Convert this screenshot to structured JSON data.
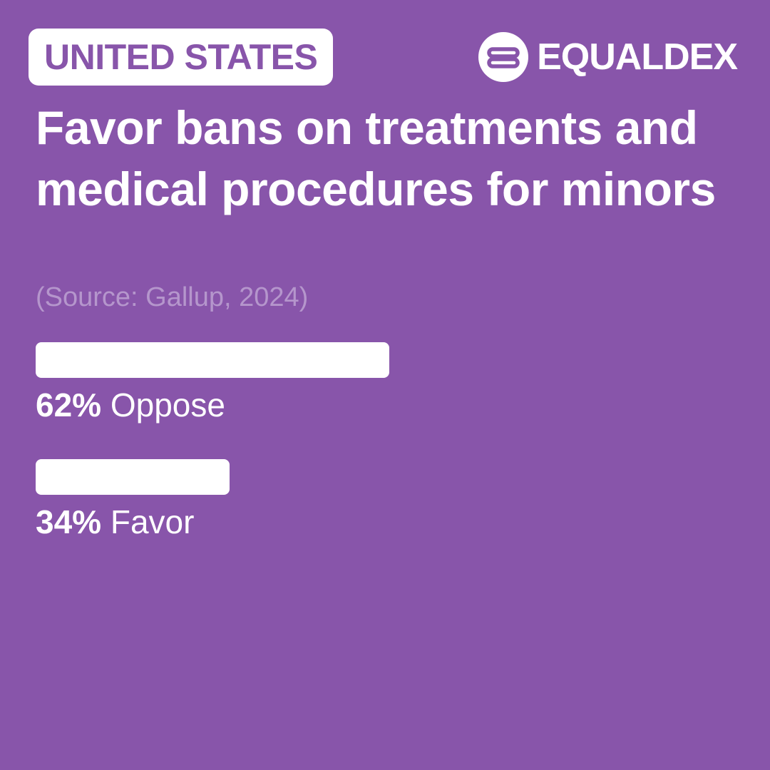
{
  "header": {
    "country": "UNITED STATES",
    "brand": "EQUALDEX",
    "brand_icon": "equaldex-logo-icon"
  },
  "colors": {
    "background": "#8855aa",
    "bar": "#ffffff",
    "source_text": "#b596cc"
  },
  "chart_data": {
    "type": "bar",
    "orientation": "horizontal",
    "title": "Favor bans on treatments and medical procedures for minors",
    "subtitle": "(Source: Gallup, 2024)",
    "categories": [
      "Oppose",
      "Favor"
    ],
    "values": [
      62,
      34
    ],
    "value_labels": [
      "62%",
      "34%"
    ],
    "xlim": [
      0,
      100
    ],
    "grid": false
  }
}
